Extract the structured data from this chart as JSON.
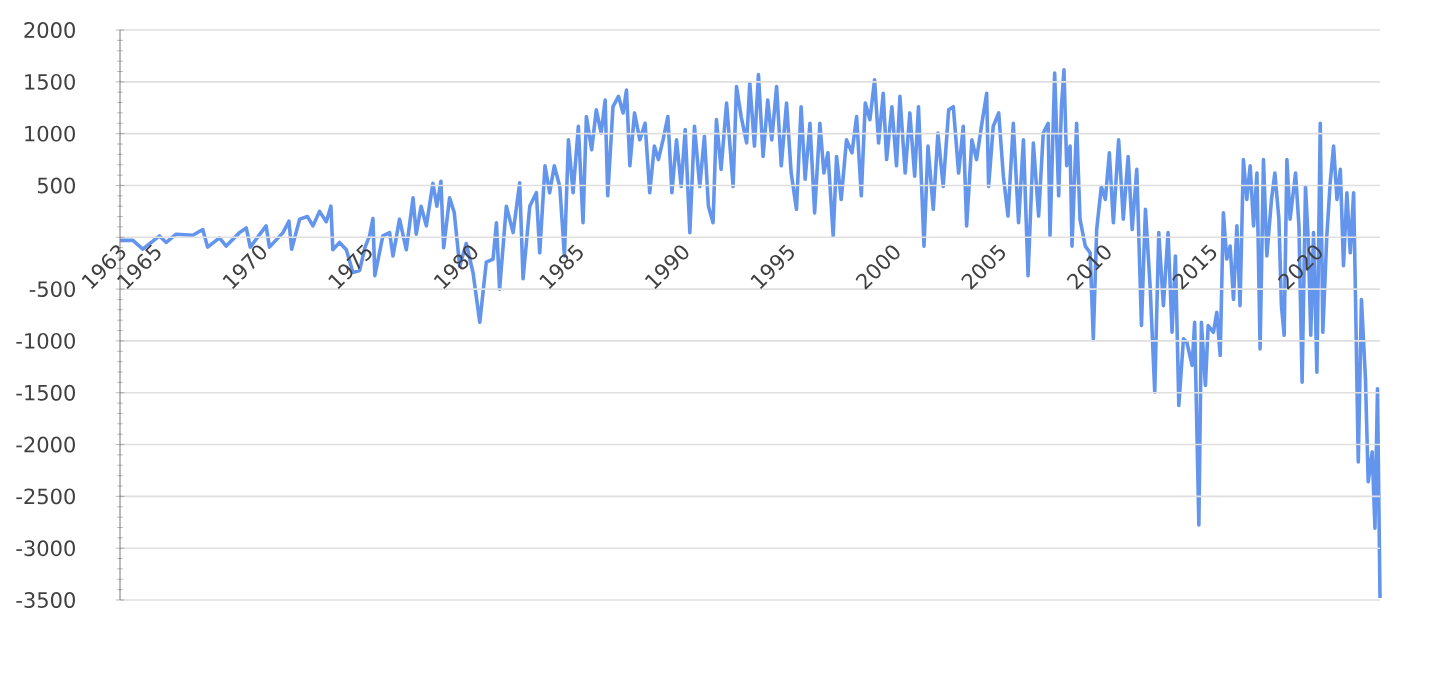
{
  "chart_data": {
    "type": "line",
    "color": "#6495ed",
    "grid": "y",
    "xlim": [
      1963.32,
      2023.0
    ],
    "ylim": [
      -3500,
      2000
    ],
    "xticks": [
      {
        "value": 1963.32,
        "label": "1963"
      },
      1965,
      1970,
      1975,
      1980,
      1985,
      1990,
      1995,
      2000,
      2005,
      2010,
      2015,
      2020
    ],
    "yticks": [
      -3500,
      -3000,
      -2500,
      -2000,
      -1500,
      -1000,
      -500,
      {
        "value": 0,
        "label": null
      },
      500,
      1000,
      1500,
      2000
    ],
    "x": [
      1963.33,
      1963.93,
      1964.4,
      1965.19,
      1965.51,
      1965.98,
      1966.77,
      1967.24,
      1967.47,
      1968.03,
      1968.35,
      1968.98,
      1969.3,
      1969.49,
      1970.24,
      1970.4,
      1971.04,
      1971.32,
      1971.45,
      1971.83,
      1972.2,
      1972.46,
      1972.77,
      1973.09,
      1973.31,
      1973.4,
      1973.72,
      1974.04,
      1974.35,
      1974.67,
      1974.92,
      1975.14,
      1975.3,
      1975.39,
      1975.77,
      1976.09,
      1976.25,
      1976.56,
      1976.88,
      1977.2,
      1977.35,
      1977.58,
      1977.83,
      1978.14,
      1978.33,
      1978.52,
      1978.65,
      1978.93,
      1979.15,
      1979.41,
      1979.72,
      1980.04,
      1980.36,
      1980.67,
      1980.99,
      1981.15,
      1981.3,
      1981.62,
      1981.94,
      1982.25,
      1982.41,
      1982.73,
      1983.04,
      1983.2,
      1983.45,
      1983.67,
      1983.89,
      1984.15,
      1984.37,
      1984.56,
      1984.78,
      1985.03,
      1985.25,
      1985.41,
      1985.66,
      1985.88,
      1986.11,
      1986.3,
      1986.42,
      1986.67,
      1986.93,
      1987.15,
      1987.31,
      1987.47,
      1987.69,
      1987.94,
      1988.19,
      1988.41,
      1988.63,
      1988.82,
      1989.04,
      1989.27,
      1989.46,
      1989.68,
      1989.9,
      1990.09,
      1990.31,
      1990.53,
      1990.78,
      1991.0,
      1991.19,
      1991.41,
      1991.57,
      1991.79,
      1992.05,
      1992.2,
      1992.36,
      1992.52,
      1992.74,
      1993.0,
      1993.15,
      1993.37,
      1993.56,
      1993.78,
      1994.0,
      1994.19,
      1994.42,
      1994.64,
      1994.89,
      1995.11,
      1995.36,
      1995.58,
      1995.77,
      1996.0,
      1996.22,
      1996.47,
      1996.66,
      1996.85,
      1997.1,
      1997.26,
      1997.48,
      1997.73,
      1997.99,
      1998.21,
      1998.43,
      1998.62,
      1998.84,
      1999.06,
      1999.25,
      1999.47,
      1999.63,
      1999.88,
      2000.1,
      2000.26,
      2000.51,
      2000.73,
      2000.96,
      2001.14,
      2001.4,
      2001.59,
      2001.84,
      2002.06,
      2002.31,
      2002.57,
      2002.79,
      2003.04,
      2003.26,
      2003.42,
      2003.67,
      2003.89,
      2004.12,
      2004.37,
      2004.46,
      2004.68,
      2004.94,
      2005.16,
      2005.38,
      2005.63,
      2005.88,
      2006.11,
      2006.33,
      2006.58,
      2006.83,
      2007.05,
      2007.28,
      2007.37,
      2007.59,
      2007.78,
      2007.91,
      2008.03,
      2008.16,
      2008.32,
      2008.41,
      2008.63,
      2008.79,
      2009.04,
      2009.27,
      2009.42,
      2009.58,
      2009.8,
      2009.99,
      2010.18,
      2010.37,
      2010.62,
      2010.84,
      2011.07,
      2011.26,
      2011.48,
      2011.7,
      2011.89,
      2012.11,
      2012.33,
      2012.52,
      2012.74,
      2012.96,
      2013.15,
      2013.31,
      2013.47,
      2013.69,
      2013.85,
      2014.1,
      2014.22,
      2014.42,
      2014.54,
      2014.73,
      2014.86,
      2015.11,
      2015.27,
      2015.43,
      2015.58,
      2015.74,
      2015.9,
      2016.06,
      2016.22,
      2016.37,
      2016.53,
      2016.69,
      2016.85,
      2017.01,
      2017.17,
      2017.32,
      2017.48,
      2017.64,
      2017.86,
      2018.02,
      2018.21,
      2018.33,
      2018.46,
      2018.59,
      2018.74,
      2019.0,
      2019.16,
      2019.31,
      2019.47,
      2019.6,
      2019.72,
      2019.85,
      2020.01,
      2020.17,
      2020.29,
      2020.48,
      2020.64,
      2020.8,
      2020.96,
      2021.12,
      2021.27,
      2021.43,
      2021.59,
      2021.75,
      2021.84,
      2021.97,
      2022.12,
      2022.31,
      2022.44,
      2022.63,
      2022.76,
      2022.88,
      2023.0
    ],
    "values": [
      -30,
      -30,
      -115,
      13,
      -50,
      30,
      20,
      75,
      -95,
      -5,
      -85,
      45,
      90,
      -95,
      110,
      -95,
      45,
      155,
      -115,
      175,
      200,
      110,
      250,
      150,
      300,
      -120,
      -50,
      -120,
      -340,
      -320,
      -100,
      13,
      180,
      -370,
      13,
      45,
      -180,
      175,
      -120,
      380,
      30,
      300,
      110,
      520,
      300,
      540,
      -100,
      380,
      240,
      -280,
      -60,
      -340,
      -820,
      -240,
      -210,
      140,
      -500,
      300,
      45,
      525,
      -400,
      300,
      430,
      -150,
      690,
      430,
      690,
      490,
      -180,
      940,
      430,
      1070,
      140,
      1165,
      845,
      1230,
      1005,
      1325,
      400,
      1260,
      1360,
      1200,
      1420,
      690,
      1200,
      940,
      1100,
      430,
      880,
      750,
      940,
      1165,
      430,
      940,
      490,
      1040,
      45,
      1070,
      490,
      975,
      300,
      140,
      1135,
      655,
      1295,
      910,
      490,
      1455,
      1165,
      910,
      1490,
      880,
      1570,
      780,
      1325,
      940,
      1455,
      690,
      1295,
      620,
      270,
      1260,
      560,
      1100,
      235,
      1100,
      620,
      815,
      13,
      780,
      365,
      940,
      815,
      1165,
      400,
      1295,
      1135,
      1520,
      910,
      1390,
      750,
      1260,
      690,
      1360,
      620,
      1200,
      590,
      1260,
      -85,
      880,
      270,
      1005,
      490,
      1230,
      1260,
      620,
      1070,
      110,
      940,
      750,
      1070,
      1390,
      490,
      1070,
      1200,
      590,
      205,
      1100,
      140,
      940,
      -370,
      910,
      205,
      1005,
      1100,
      13,
      1585,
      400,
      1260,
      1615,
      690,
      880,
      -85,
      1100,
      175,
      -85,
      -150,
      -980,
      75,
      490,
      365,
      815,
      140,
      940,
      175,
      780,
      75,
      655,
      -850,
      270,
      -470,
      -1494,
      45,
      -660,
      45,
      -915,
      -180,
      -1622,
      -980,
      -1013,
      -1237,
      -820,
      -2775,
      -820,
      -1430,
      -852,
      -917,
      -725,
      -1140,
      237,
      -210,
      -85,
      -600,
      110,
      -660,
      750,
      365,
      690,
      110,
      620,
      -1077,
      750,
      -180,
      365,
      620,
      175,
      -660,
      -945,
      750,
      175,
      620,
      110,
      -1398,
      490,
      -20,
      -945,
      45,
      -1301,
      1100,
      -917,
      13,
      525,
      880,
      365,
      655,
      -275,
      430,
      -150,
      430,
      -596,
      -2167,
      -600,
      -1365,
      -2359,
      -2071,
      -2808,
      -1461,
      -3480
    ]
  }
}
